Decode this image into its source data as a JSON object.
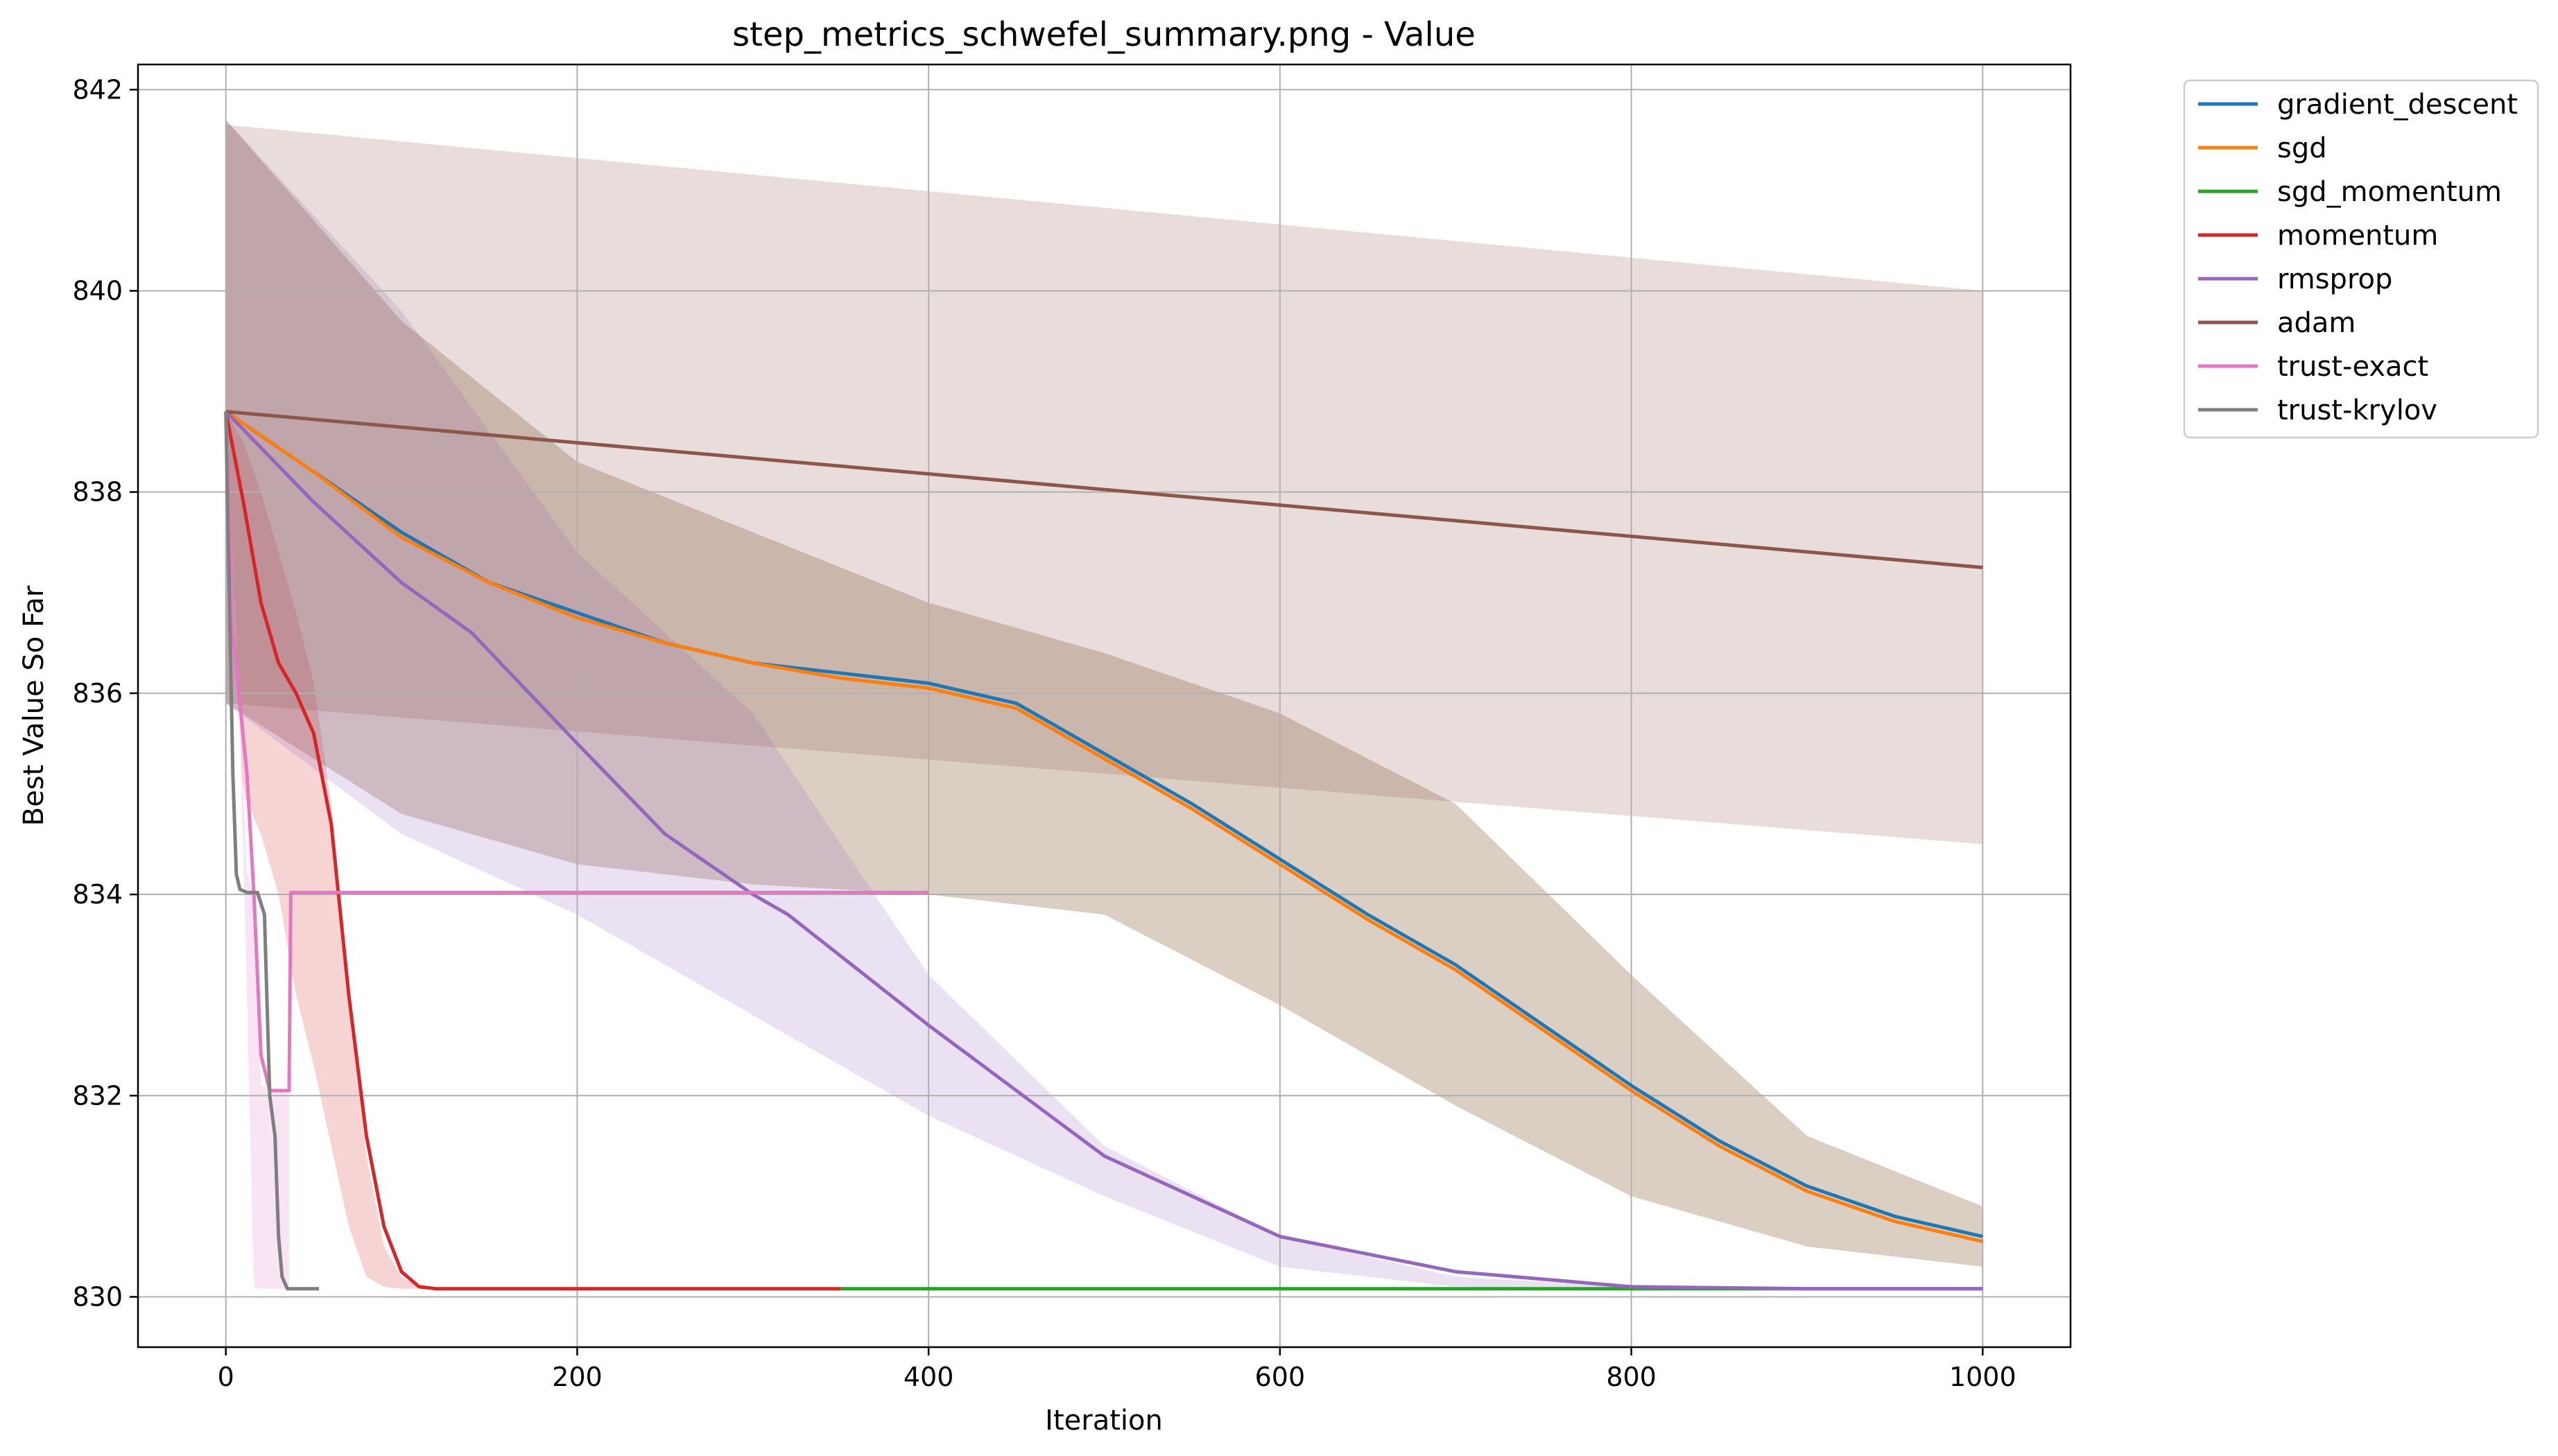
{
  "chart_data": {
    "type": "line",
    "title": "step_metrics_schwefel_summary.png - Value",
    "xlabel": "Iteration",
    "ylabel": "Best Value So Far",
    "xlim": [
      -50,
      1050
    ],
    "ylim": [
      829.5,
      842.25
    ],
    "xticks": [
      0,
      200,
      400,
      600,
      800,
      1000
    ],
    "yticks": [
      830,
      832,
      834,
      836,
      838,
      840,
      842
    ],
    "grid": true,
    "legend_position": "outside-top-right",
    "series": [
      {
        "name": "gradient_descent",
        "color": "#1f77b4",
        "x": [
          0,
          50,
          100,
          150,
          200,
          250,
          300,
          350,
          400,
          450,
          500,
          550,
          600,
          650,
          700,
          750,
          800,
          850,
          900,
          950,
          1000
        ],
        "y": [
          838.8,
          838.2,
          837.6,
          837.1,
          836.8,
          836.5,
          836.3,
          836.2,
          836.1,
          835.9,
          835.4,
          834.9,
          834.35,
          833.8,
          833.3,
          832.7,
          832.1,
          831.55,
          831.1,
          830.8,
          830.6
        ],
        "band_x": [
          0,
          100,
          200,
          300,
          400,
          500,
          600,
          700,
          800,
          900,
          1000
        ],
        "band_upper": [
          841.7,
          839.7,
          838.3,
          837.6,
          836.9,
          836.4,
          835.8,
          834.9,
          833.2,
          831.6,
          830.9
        ],
        "band_lower": [
          835.9,
          834.8,
          834.3,
          834.1,
          834.0,
          833.8,
          832.9,
          831.9,
          831.0,
          830.5,
          830.3
        ]
      },
      {
        "name": "sgd",
        "color": "#ff7f0e",
        "x": [
          0,
          50,
          100,
          150,
          200,
          250,
          300,
          350,
          400,
          450,
          500,
          550,
          600,
          650,
          700,
          750,
          800,
          850,
          900,
          950,
          1000
        ],
        "y": [
          838.8,
          838.2,
          837.55,
          837.1,
          836.75,
          836.5,
          836.3,
          836.15,
          836.05,
          835.85,
          835.35,
          834.85,
          834.3,
          833.75,
          833.25,
          832.65,
          832.05,
          831.5,
          831.05,
          830.75,
          830.55
        ],
        "band_x": [
          0,
          100,
          200,
          300,
          400,
          500,
          600,
          700,
          800,
          900,
          1000
        ],
        "band_upper": [
          841.7,
          839.7,
          838.3,
          837.6,
          836.9,
          836.4,
          835.8,
          834.9,
          833.2,
          831.6,
          830.9
        ],
        "band_lower": [
          835.9,
          834.8,
          834.3,
          834.1,
          834.0,
          833.8,
          832.9,
          831.9,
          831.0,
          830.5,
          830.3
        ]
      },
      {
        "name": "sgd_momentum",
        "color": "#2ca02c",
        "x": [
          350,
          1000
        ],
        "y": [
          830.08,
          830.08
        ]
      },
      {
        "name": "momentum",
        "color": "#d62728",
        "x": [
          0,
          10,
          20,
          30,
          40,
          50,
          60,
          70,
          80,
          90,
          100,
          110,
          120,
          350
        ],
        "y": [
          838.8,
          837.9,
          836.9,
          836.3,
          836.0,
          835.6,
          834.7,
          833.0,
          831.6,
          830.7,
          830.25,
          830.1,
          830.08,
          830.08
        ],
        "band_x": [
          0,
          10,
          20,
          30,
          40,
          50,
          60,
          70,
          80,
          90,
          100,
          110
        ],
        "band_upper": [
          838.8,
          838.5,
          838.0,
          837.4,
          836.8,
          836.1,
          834.9,
          833.0,
          831.4,
          830.5,
          830.2,
          830.1
        ],
        "band_lower": [
          838.8,
          835.0,
          834.6,
          834.0,
          833.0,
          832.3,
          831.5,
          830.7,
          830.2,
          830.1,
          830.08,
          830.08
        ]
      },
      {
        "name": "rmsprop",
        "color": "#9467bd",
        "x": [
          0,
          50,
          100,
          140,
          200,
          250,
          300,
          320,
          400,
          500,
          600,
          700,
          800,
          900,
          1000
        ],
        "y": [
          838.8,
          837.9,
          837.1,
          836.6,
          835.5,
          834.6,
          834.0,
          833.8,
          832.7,
          831.4,
          830.6,
          830.25,
          830.1,
          830.08,
          830.08
        ],
        "band_x": [
          0,
          100,
          200,
          300,
          400,
          500,
          600,
          700,
          800,
          900,
          1000
        ],
        "band_upper": [
          841.7,
          839.8,
          837.4,
          835.8,
          833.2,
          831.5,
          830.6,
          830.2,
          830.1,
          830.08,
          830.08
        ],
        "band_lower": [
          835.9,
          834.6,
          833.8,
          832.8,
          831.8,
          831.0,
          830.3,
          830.1,
          830.08,
          830.08,
          830.08
        ]
      },
      {
        "name": "adam",
        "color": "#8c564b",
        "x": [
          0,
          1000
        ],
        "y": [
          838.8,
          837.25
        ],
        "band_x": [
          0,
          1000
        ],
        "band_upper": [
          841.65,
          840.0
        ],
        "band_lower": [
          835.9,
          834.5
        ]
      },
      {
        "name": "trust-exact",
        "color": "#e377c2",
        "x": [
          0,
          4,
          8,
          12,
          16,
          20,
          25,
          36,
          37,
          400
        ],
        "y": [
          838.8,
          836.6,
          835.9,
          835.2,
          834.0,
          832.4,
          832.05,
          832.05,
          834.02,
          834.02
        ],
        "band_x": [
          0,
          4,
          8,
          12,
          16,
          20,
          36
        ],
        "band_upper": [
          838.8,
          836.5,
          836.0,
          834.2,
          834.0,
          832.1,
          832.05
        ],
        "band_lower": [
          838.8,
          836.2,
          835.6,
          833.0,
          830.1,
          830.08,
          830.08
        ]
      },
      {
        "name": "trust-krylov",
        "color": "#7f7f7f",
        "x": [
          0,
          2,
          4,
          6,
          8,
          12,
          18,
          22,
          25,
          28,
          30,
          32,
          35,
          40,
          53
        ],
        "y": [
          838.8,
          837.0,
          835.2,
          834.2,
          834.05,
          834.02,
          834.02,
          833.8,
          832.0,
          831.6,
          830.6,
          830.2,
          830.08,
          830.08,
          830.08
        ]
      }
    ]
  }
}
